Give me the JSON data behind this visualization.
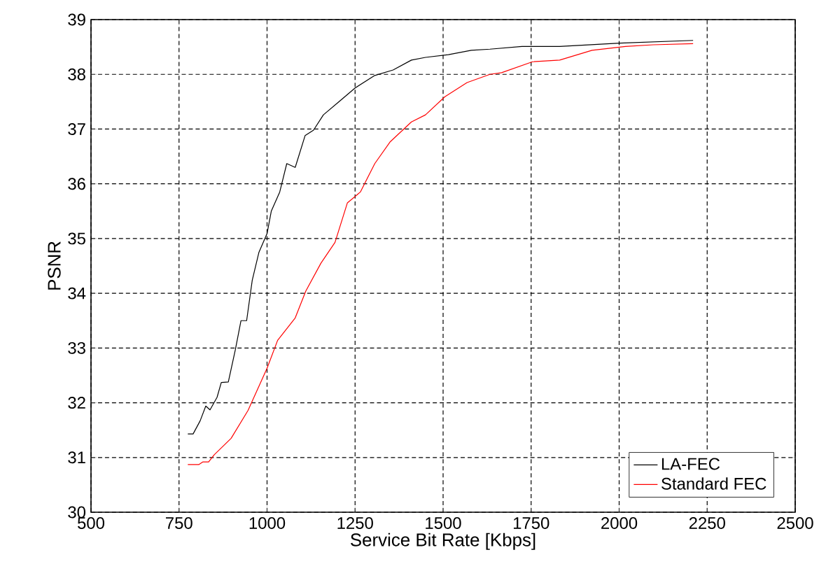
{
  "chart_data": {
    "type": "line",
    "xlabel": "Service Bit Rate [Kbps]",
    "ylabel": "PSNR",
    "xlim": [
      500,
      2500
    ],
    "ylim": [
      30,
      39
    ],
    "xticks": [
      500,
      750,
      1000,
      1250,
      1500,
      1750,
      2000,
      2250,
      2500
    ],
    "yticks": [
      30,
      31,
      32,
      33,
      34,
      35,
      36,
      37,
      38,
      39
    ],
    "grid": true,
    "legend": "bottom right",
    "line_style": "solid",
    "marker": "none",
    "series": [
      {
        "name": "LA-FEC",
        "color": "#000000",
        "x": [
          775,
          790,
          810,
          826,
          838,
          858,
          870,
          890,
          910,
          926,
          942,
          958,
          977,
          1000,
          1012,
          1036,
          1056,
          1080,
          1108,
          1132,
          1160,
          1208,
          1250,
          1306,
          1358,
          1410,
          1450,
          1515,
          1580,
          1633,
          1724,
          1831,
          2002,
          2210
        ],
        "values": [
          31.43,
          31.43,
          31.67,
          31.94,
          31.87,
          32.1,
          32.37,
          32.38,
          32.97,
          33.5,
          33.5,
          34.24,
          34.75,
          35.09,
          35.5,
          35.85,
          36.37,
          36.3,
          36.88,
          36.98,
          37.26,
          37.52,
          37.75,
          37.98,
          38.08,
          38.26,
          38.31,
          38.36,
          38.44,
          38.46,
          38.51,
          38.51,
          38.57,
          38.62
        ]
      },
      {
        "name": "Standard FEC",
        "color": "#ff0000",
        "x": [
          775,
          806,
          818,
          834,
          850,
          898,
          946,
          1000,
          1030,
          1080,
          1110,
          1153,
          1193,
          1228,
          1265,
          1306,
          1350,
          1410,
          1450,
          1505,
          1568,
          1633,
          1666,
          1754,
          1831,
          1923,
          2018,
          2097,
          2210
        ],
        "values": [
          30.87,
          30.87,
          30.92,
          30.92,
          31.05,
          31.35,
          31.86,
          32.63,
          33.14,
          33.55,
          34.04,
          34.55,
          34.93,
          35.65,
          35.85,
          36.37,
          36.77,
          37.13,
          37.26,
          37.59,
          37.85,
          38.0,
          38.03,
          38.23,
          38.26,
          38.44,
          38.51,
          38.54,
          38.56
        ]
      }
    ]
  }
}
